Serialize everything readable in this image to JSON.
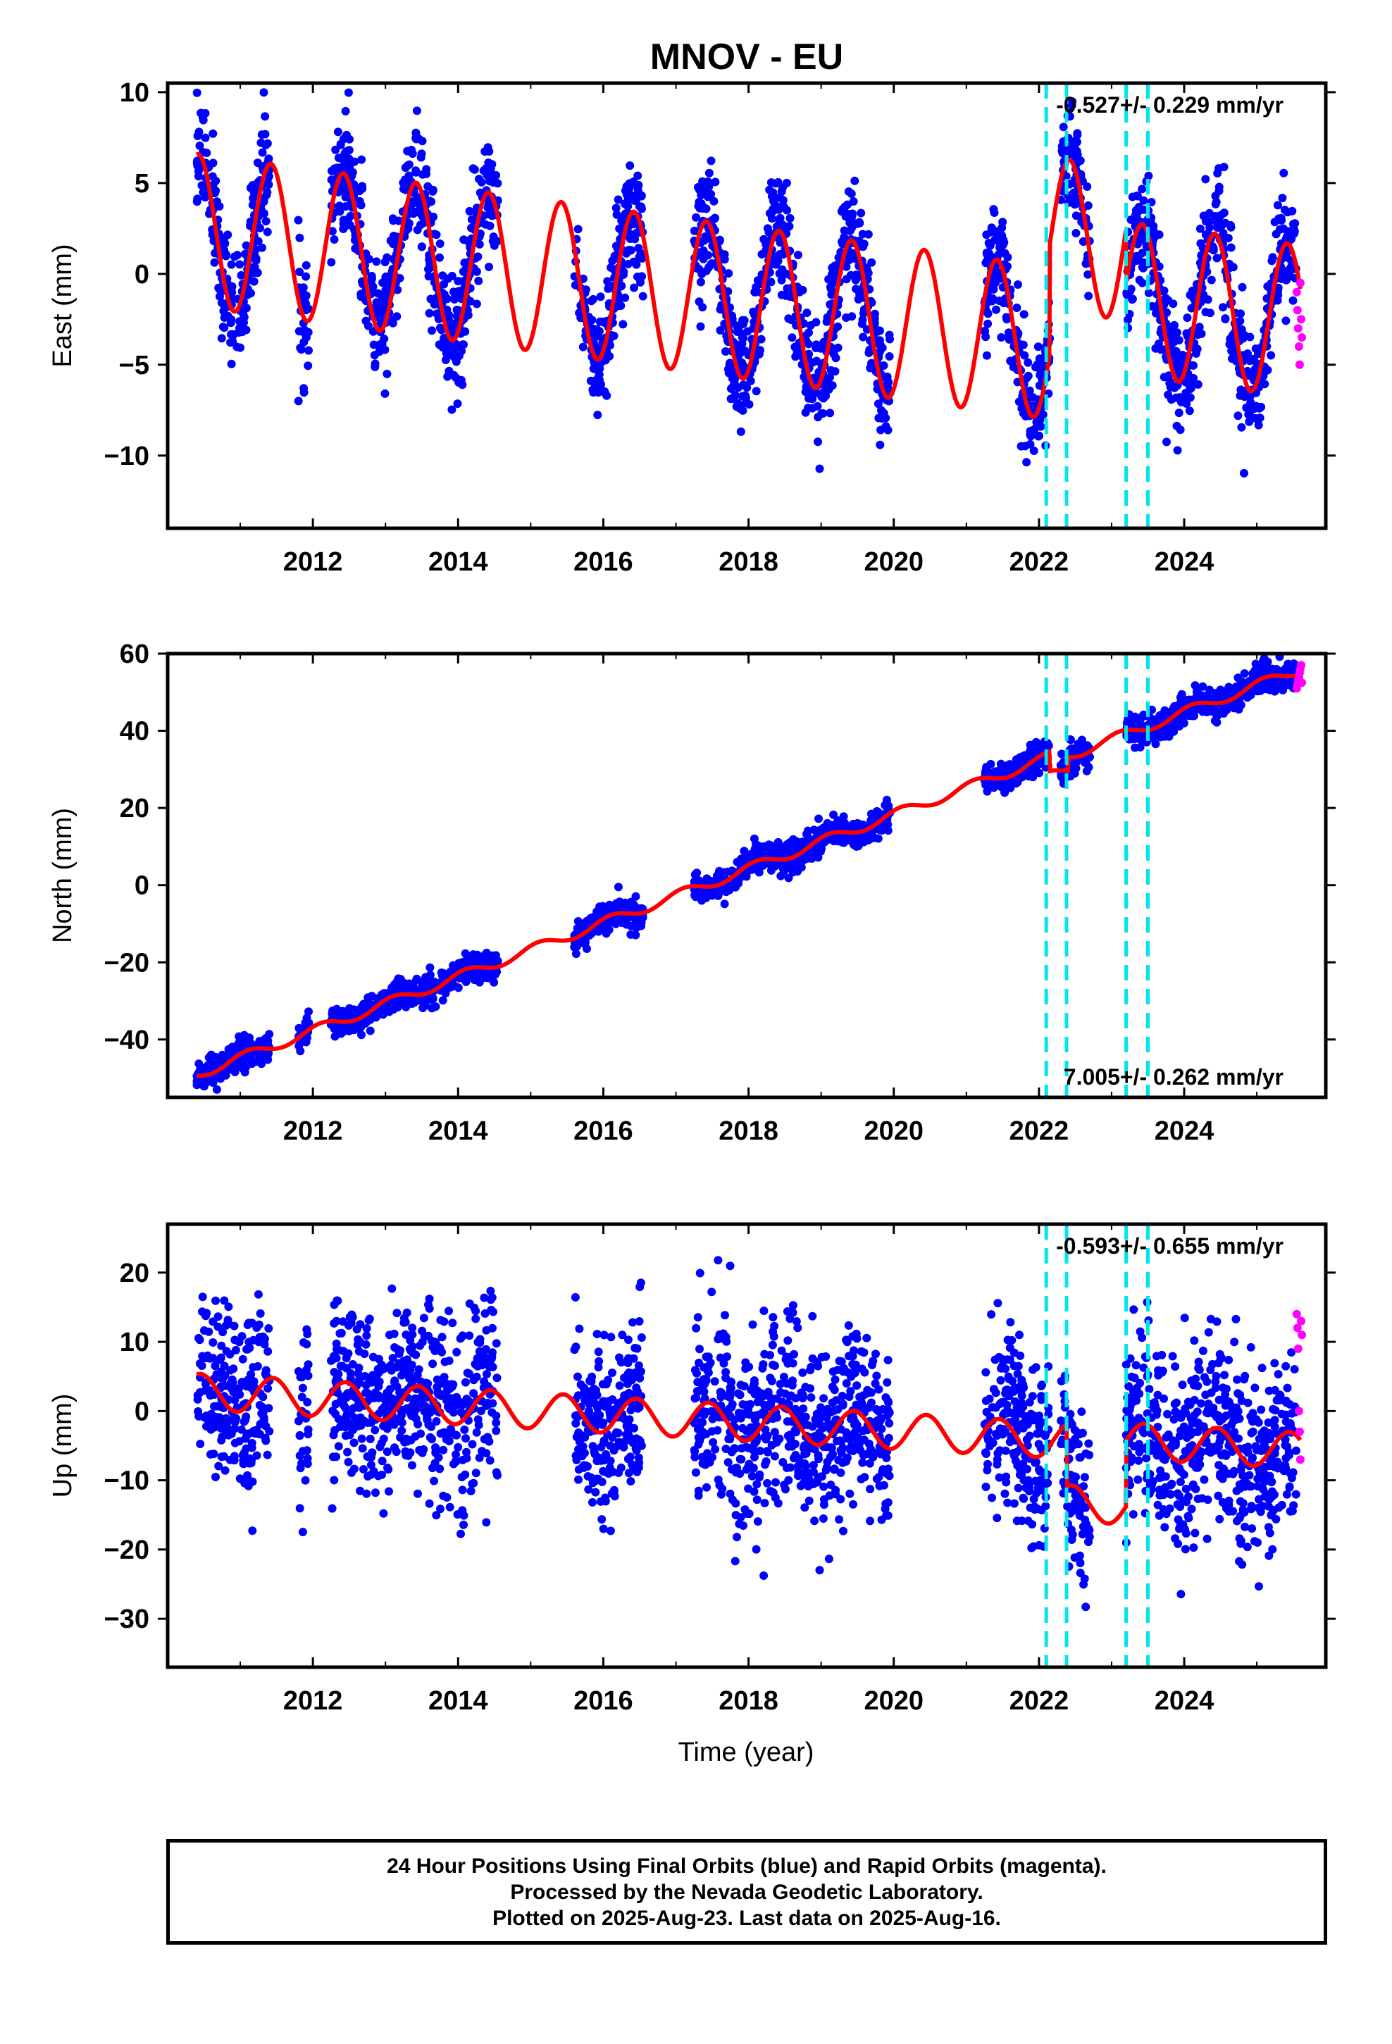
{
  "title": "MNOV - EU",
  "colors": {
    "final_points": "#0000ff",
    "rapid_points": "#ff00ff",
    "model_line": "#ff0000",
    "break_lines": "#00e5ee",
    "frame": "#000000"
  },
  "footer": {
    "line1": "24 Hour Positions Using Final Orbits (blue) and Rapid Orbits (magenta).",
    "line2": "Processed by the Nevada Geodetic Laboratory.",
    "line3": "Plotted on 2025-Aug-23. Last data on 2025-Aug-16."
  },
  "chart_data": [
    {
      "type": "scatter",
      "component": "East",
      "ylabel": "East (mm)",
      "xlabel": "",
      "xlim": [
        2010.0,
        2025.95
      ],
      "ylim": [
        -14,
        10.5
      ],
      "xticks": [
        2012,
        2014,
        2016,
        2018,
        2020,
        2022,
        2024
      ],
      "yticks": [
        -10,
        -5,
        0,
        5,
        10
      ],
      "rate_label": "-0.527+/- 0.229 mm/yr",
      "rate_label_position": "top-right",
      "model": {
        "start": 2010.4,
        "end": 2025.6,
        "trend": -0.527,
        "offset": 2.4,
        "annual_amplitude": 4.2,
        "annual_peak_phase": 0.42,
        "steps": [
          {
            "x": 2022.15,
            "dy": 6.0
          },
          {
            "x": 2023.2,
            "dy": -3.0
          },
          {
            "x": 2024.9,
            "dy": 0
          }
        ]
      },
      "data_segments": [
        [
          2010.4,
          2011.4
        ],
        [
          2011.8,
          2011.95
        ],
        [
          2012.25,
          2014.55
        ],
        [
          2015.6,
          2016.55
        ],
        [
          2017.25,
          2019.95
        ],
        [
          2021.25,
          2022.15
        ],
        [
          2022.3,
          2022.7
        ],
        [
          2023.2,
          2025.55
        ]
      ],
      "scatter_noise": 1.6,
      "rapid": {
        "x_start": 2025.55,
        "x_end": 2025.62,
        "y_values": [
          -1,
          -2,
          -3,
          -4,
          -5,
          -0.5,
          -2.5,
          -3.5
        ]
      },
      "breaks": [
        2022.1,
        2022.38,
        2023.2,
        2023.5
      ]
    },
    {
      "type": "scatter",
      "component": "North",
      "ylabel": "North (mm)",
      "xlabel": "",
      "xlim": [
        2010.0,
        2025.95
      ],
      "ylim": [
        -55,
        60
      ],
      "xticks": [
        2012,
        2014,
        2016,
        2018,
        2020,
        2022,
        2024
      ],
      "yticks": [
        -40,
        -20,
        0,
        20,
        40,
        60
      ],
      "rate_label": "7.005+/- 0.262 mm/yr",
      "rate_label_position": "bottom-right",
      "model": {
        "start": 2010.4,
        "end": 2025.6,
        "trend": 7.005,
        "offset": -49,
        "annual_amplitude": 1.3,
        "annual_peak_phase": 0.1,
        "steps": [
          {
            "x": 2022.15,
            "dy": -5.0
          },
          {
            "x": 2022.4,
            "dy": 3.5
          }
        ]
      },
      "data_segments": [
        [
          2010.4,
          2011.4
        ],
        [
          2011.8,
          2011.95
        ],
        [
          2012.25,
          2014.55
        ],
        [
          2015.6,
          2016.55
        ],
        [
          2017.25,
          2019.95
        ],
        [
          2021.25,
          2022.15
        ],
        [
          2022.3,
          2022.7
        ],
        [
          2023.2,
          2025.55
        ]
      ],
      "scatter_noise": 1.8,
      "rapid": {
        "x_start": 2025.55,
        "x_end": 2025.62,
        "y_values": [
          51,
          52,
          53,
          54,
          55,
          56,
          57,
          52.5
        ]
      },
      "breaks": [
        2022.1,
        2022.38,
        2023.2,
        2023.5
      ]
    },
    {
      "type": "scatter",
      "component": "Up",
      "ylabel": "Up (mm)",
      "xlabel": "Time (year)",
      "xlim": [
        2010.0,
        2025.95
      ],
      "ylim": [
        -37,
        27
      ],
      "xticks": [
        2012,
        2014,
        2016,
        2018,
        2020,
        2022,
        2024
      ],
      "yticks": [
        -30,
        -20,
        -10,
        0,
        10,
        20
      ],
      "rate_label": "-0.593+/- 0.655 mm/yr",
      "rate_label_position": "top-right",
      "model": {
        "start": 2010.4,
        "end": 2025.6,
        "trend": -0.593,
        "offset": 2.8,
        "annual_amplitude": 2.6,
        "annual_peak_phase": 0.45,
        "steps": [
          {
            "x": 2022.38,
            "dy": -9.0
          },
          {
            "x": 2023.2,
            "dy": 9.5
          }
        ]
      },
      "data_segments": [
        [
          2010.4,
          2011.4
        ],
        [
          2011.8,
          2011.95
        ],
        [
          2012.25,
          2014.55
        ],
        [
          2015.6,
          2016.55
        ],
        [
          2017.25,
          2019.95
        ],
        [
          2021.25,
          2022.15
        ],
        [
          2022.3,
          2022.7
        ],
        [
          2023.2,
          2025.55
        ]
      ],
      "scatter_noise": 6.5,
      "rapid": {
        "x_start": 2025.55,
        "x_end": 2025.62,
        "y_values": [
          14,
          12,
          9,
          0,
          -3,
          -7,
          13,
          11
        ]
      },
      "breaks": [
        2022.1,
        2022.38,
        2023.2,
        2023.5
      ]
    }
  ]
}
